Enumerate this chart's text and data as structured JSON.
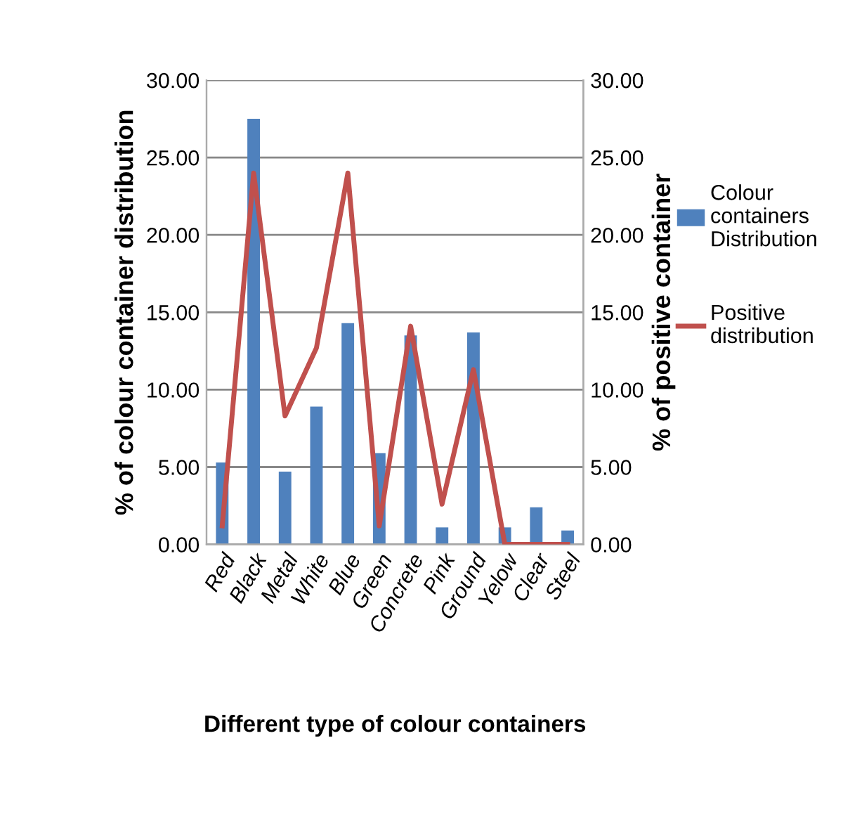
{
  "chart_data": {
    "type": "bar",
    "xlabel": "Different type of colour containers",
    "ylabel": "% of colour container distribution",
    "y2label": "% of positive container",
    "categories": [
      "Red",
      "Black",
      "Metal",
      "White",
      "Blue",
      "Green",
      "Concrete",
      "Pink",
      "Ground",
      "Yelow",
      "Clear",
      "Steel"
    ],
    "series": [
      {
        "name": "Colour containers Distribution",
        "color": "#4f81bd",
        "values": [
          5.3,
          27.5,
          4.7,
          8.9,
          14.3,
          5.9,
          13.5,
          1.1,
          13.7,
          1.1,
          2.4,
          0.9
        ]
      },
      {
        "name": "Positive distribution",
        "type": "line",
        "axis": "y2",
        "color": "#c0504d",
        "values": [
          1.2,
          24.0,
          8.3,
          12.7,
          24.0,
          1.2,
          14.1,
          2.6,
          11.3,
          0,
          0,
          0
        ]
      }
    ],
    "ylim": [
      0,
      30
    ],
    "yticks": [
      {
        "value": 0,
        "label": "0.00"
      },
      {
        "value": 5,
        "label": "5.00"
      },
      {
        "value": 10,
        "label": "10.00"
      },
      {
        "value": 15,
        "label": "15.00"
      },
      {
        "value": 20,
        "label": "20.00"
      },
      {
        "value": 25,
        "label": "25.00"
      },
      {
        "value": 30,
        "label": "30.00"
      }
    ],
    "y2lim": [
      0,
      30
    ],
    "y2ticks": [
      {
        "value": 0,
        "label": "0.00"
      },
      {
        "value": 5,
        "label": "5.00"
      },
      {
        "value": 10,
        "label": "10.00"
      },
      {
        "value": 15,
        "label": "15.00"
      },
      {
        "value": 20,
        "label": "20.00"
      },
      {
        "value": 25,
        "label": "25.00"
      },
      {
        "value": 30,
        "label": "30.00"
      }
    ],
    "grid": "y",
    "legend": "right",
    "marker": "none",
    "line_style": "solid"
  }
}
